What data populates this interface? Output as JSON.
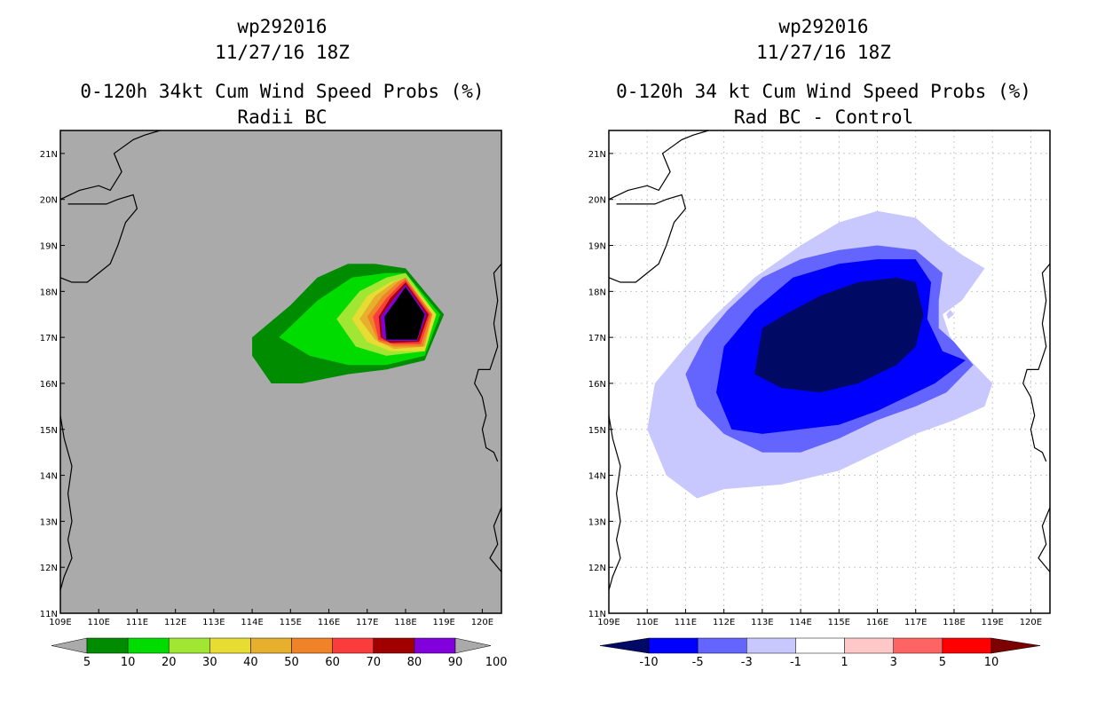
{
  "colors": {
    "land_mask": "#aaaaaa",
    "left_bins": [
      "#008c00",
      "#00dc00",
      "#a0e632",
      "#e6dc32",
      "#e6af2d",
      "#f08228",
      "#fa3c3c",
      "#a00000",
      "#8200dc"
    ],
    "right_bins": [
      "#000a64",
      "#0000ff",
      "#6464ff",
      "#c8c8ff",
      "#ffffff",
      "#ffc8c8",
      "#ff6464",
      "#ff0000",
      "#7d0000"
    ],
    "arrow": "#aaaaaa"
  },
  "left_panel": {
    "title_line1": "wp292016",
    "title_line2": "11/27/16 18Z",
    "title_line3": "0-120h 34kt Cum Wind Speed Probs (%)",
    "title_line4": "Radii BC",
    "colorbar_labels": [
      "5",
      "10",
      "20",
      "30",
      "40",
      "50",
      "60",
      "70",
      "80",
      "90",
      "100"
    ]
  },
  "right_panel": {
    "title_line1": "wp292016",
    "title_line2": "11/27/16 18Z",
    "title_line3": "0-120h 34 kt Cum Wind Speed Probs (%)",
    "title_line4": "Rad BC - Control",
    "colorbar_labels": [
      "-10",
      "-5",
      "-3",
      "-1",
      "1",
      "3",
      "5",
      "10"
    ]
  },
  "axes": {
    "lon_labels": [
      "109E",
      "110E",
      "111E",
      "112E",
      "113E",
      "114E",
      "115E",
      "116E",
      "117E",
      "118E",
      "119E",
      "120E"
    ],
    "lat_labels": [
      "11N",
      "12N",
      "13N",
      "14N",
      "15N",
      "16N",
      "17N",
      "18N",
      "19N",
      "20N",
      "21N"
    ]
  },
  "chart_data": [
    {
      "type": "heatmap",
      "title": "0-120h 34kt Cum Wind Speed Probs (%)",
      "subtitle": "Radii BC",
      "units": "%",
      "xlim": [
        109,
        120.5
      ],
      "ylim": [
        11,
        21.5
      ],
      "levels": [
        5,
        10,
        20,
        30,
        40,
        50,
        60,
        70,
        80,
        90,
        100
      ],
      "contours": [
        {
          "level": 5,
          "points": [
            [
              114.0,
              16.6
            ],
            [
              114.0,
              17.0
            ],
            [
              115.0,
              17.7
            ],
            [
              115.7,
              18.3
            ],
            [
              116.5,
              18.6
            ],
            [
              117.2,
              18.6
            ],
            [
              118.0,
              18.5
            ],
            [
              119.0,
              17.5
            ],
            [
              118.5,
              16.5
            ],
            [
              117.5,
              16.3
            ],
            [
              116.5,
              16.2
            ],
            [
              115.3,
              16.0
            ],
            [
              114.5,
              16.0
            ]
          ]
        },
        {
          "level": 10,
          "points": [
            [
              114.7,
              17.0
            ],
            [
              115.7,
              17.8
            ],
            [
              116.6,
              18.3
            ],
            [
              117.5,
              18.4
            ],
            [
              118.0,
              18.4
            ],
            [
              118.9,
              17.5
            ],
            [
              118.5,
              16.6
            ],
            [
              117.5,
              16.4
            ],
            [
              116.5,
              16.4
            ],
            [
              115.5,
              16.6
            ]
          ]
        },
        {
          "level": 20,
          "points": [
            [
              116.2,
              17.4
            ],
            [
              116.8,
              18.0
            ],
            [
              117.5,
              18.3
            ],
            [
              118.0,
              18.4
            ],
            [
              118.8,
              17.5
            ],
            [
              118.5,
              16.7
            ],
            [
              117.5,
              16.6
            ],
            [
              116.7,
              16.8
            ]
          ]
        },
        {
          "level": 30,
          "points": [
            [
              116.6,
              17.4
            ],
            [
              117.0,
              17.9
            ],
            [
              117.6,
              18.2
            ],
            [
              118.0,
              18.3
            ],
            [
              118.8,
              17.5
            ],
            [
              118.5,
              16.7
            ],
            [
              117.6,
              16.7
            ],
            [
              117.0,
              16.9
            ]
          ]
        },
        {
          "level": 40,
          "points": [
            [
              116.8,
              17.4
            ],
            [
              117.2,
              17.9
            ],
            [
              117.7,
              18.2
            ],
            [
              118.0,
              18.3
            ],
            [
              118.7,
              17.5
            ],
            [
              118.5,
              16.8
            ],
            [
              117.7,
              16.75
            ],
            [
              117.2,
              16.95
            ]
          ]
        },
        {
          "level": 50,
          "points": [
            [
              117.0,
              17.45
            ],
            [
              117.4,
              17.9
            ],
            [
              117.8,
              18.2
            ],
            [
              118.0,
              18.3
            ],
            [
              118.7,
              17.5
            ],
            [
              118.45,
              16.8
            ],
            [
              117.7,
              16.8
            ],
            [
              117.3,
              16.9
            ]
          ]
        },
        {
          "level": 60,
          "points": [
            [
              117.15,
              17.45
            ],
            [
              117.5,
              17.85
            ],
            [
              117.85,
              18.15
            ],
            [
              118.0,
              18.25
            ],
            [
              118.65,
              17.5
            ],
            [
              118.4,
              16.85
            ],
            [
              117.7,
              16.85
            ],
            [
              117.3,
              16.95
            ]
          ]
        },
        {
          "level": 70,
          "points": [
            [
              117.3,
              17.45
            ],
            [
              117.6,
              17.85
            ],
            [
              118.0,
              18.2
            ],
            [
              118.6,
              17.5
            ],
            [
              118.35,
              16.9
            ],
            [
              117.6,
              16.88
            ],
            [
              117.35,
              17.0
            ]
          ]
        },
        {
          "level": 80,
          "points": [
            [
              117.35,
              17.45
            ],
            [
              117.7,
              17.85
            ],
            [
              118.0,
              18.15
            ],
            [
              118.55,
              17.5
            ],
            [
              118.3,
              16.92
            ],
            [
              117.55,
              16.92
            ],
            [
              117.4,
              17.0
            ]
          ]
        },
        {
          "level": 90,
          "points": [
            [
              117.45,
              17.45
            ],
            [
              117.75,
              17.8
            ],
            [
              118.0,
              18.1
            ],
            [
              118.5,
              17.5
            ],
            [
              118.3,
              16.95
            ],
            [
              117.5,
              16.95
            ]
          ]
        }
      ]
    },
    {
      "type": "heatmap",
      "title": "0-120h 34 kt Cum Wind Speed Probs (%)",
      "subtitle": "Rad BC - Control",
      "units": "%",
      "xlim": [
        109,
        120.5
      ],
      "ylim": [
        11,
        21.5
      ],
      "levels": [
        -10,
        -5,
        -3,
        -1,
        1,
        3,
        5,
        10
      ],
      "contours": [
        {
          "level": -1,
          "points": [
            [
              110.0,
              15.0
            ],
            [
              110.2,
              16.0
            ],
            [
              111.0,
              16.8
            ],
            [
              111.8,
              17.5
            ],
            [
              112.8,
              18.3
            ],
            [
              114.0,
              19.0
            ],
            [
              115.0,
              19.5
            ],
            [
              116.0,
              19.75
            ],
            [
              117.0,
              19.6
            ],
            [
              117.7,
              19.1
            ],
            [
              118.2,
              18.8
            ],
            [
              118.8,
              18.5
            ],
            [
              118.2,
              17.8
            ],
            [
              117.7,
              17.5
            ],
            [
              117.9,
              17.0
            ],
            [
              118.2,
              16.7
            ],
            [
              119.0,
              16.0
            ],
            [
              118.8,
              15.5
            ],
            [
              118.0,
              15.2
            ],
            [
              117.0,
              14.9
            ],
            [
              116.0,
              14.5
            ],
            [
              115.0,
              14.1
            ],
            [
              113.5,
              13.8
            ],
            [
              112.0,
              13.7
            ],
            [
              111.3,
              13.5
            ],
            [
              110.5,
              14.0
            ]
          ]
        },
        {
          "level": -3,
          "points": [
            [
              111.0,
              16.2
            ],
            [
              111.5,
              17.0
            ],
            [
              112.1,
              17.6
            ],
            [
              113.0,
              18.3
            ],
            [
              114.0,
              18.7
            ],
            [
              115.0,
              18.9
            ],
            [
              116.0,
              19.0
            ],
            [
              117.0,
              18.9
            ],
            [
              117.7,
              18.4
            ],
            [
              117.6,
              17.8
            ],
            [
              117.6,
              17.2
            ],
            [
              118.0,
              16.9
            ],
            [
              118.5,
              16.4
            ],
            [
              117.8,
              15.8
            ],
            [
              117.0,
              15.5
            ],
            [
              116.0,
              15.2
            ],
            [
              115.0,
              14.8
            ],
            [
              114.0,
              14.5
            ],
            [
              113.0,
              14.5
            ],
            [
              112.0,
              14.9
            ],
            [
              111.3,
              15.5
            ]
          ]
        },
        {
          "level": -5,
          "points": [
            [
              111.8,
              15.8
            ],
            [
              112.0,
              16.8
            ],
            [
              112.8,
              17.6
            ],
            [
              113.8,
              18.3
            ],
            [
              115.0,
              18.6
            ],
            [
              116.0,
              18.7
            ],
            [
              117.0,
              18.7
            ],
            [
              117.4,
              18.2
            ],
            [
              117.3,
              17.4
            ],
            [
              117.7,
              16.7
            ],
            [
              118.3,
              16.5
            ],
            [
              117.5,
              16.0
            ],
            [
              116.0,
              15.4
            ],
            [
              115.0,
              15.1
            ],
            [
              114.0,
              15.0
            ],
            [
              113.0,
              14.9
            ],
            [
              112.2,
              15.0
            ]
          ]
        },
        {
          "level": -10,
          "points": [
            [
              112.8,
              16.2
            ],
            [
              113.0,
              17.2
            ],
            [
              113.6,
              17.5
            ],
            [
              114.5,
              17.9
            ],
            [
              115.5,
              18.2
            ],
            [
              116.5,
              18.3
            ],
            [
              117.0,
              18.2
            ],
            [
              117.2,
              17.5
            ],
            [
              117.0,
              16.8
            ],
            [
              116.5,
              16.4
            ],
            [
              115.5,
              16.0
            ],
            [
              114.5,
              15.8
            ],
            [
              113.5,
              15.9
            ]
          ]
        },
        {
          "level": -1,
          "points": [
            [
              117.85,
              17.4
            ],
            [
              118.0,
              17.5
            ],
            [
              117.9,
              17.6
            ],
            [
              117.8,
              17.5
            ]
          ]
        }
      ]
    }
  ]
}
